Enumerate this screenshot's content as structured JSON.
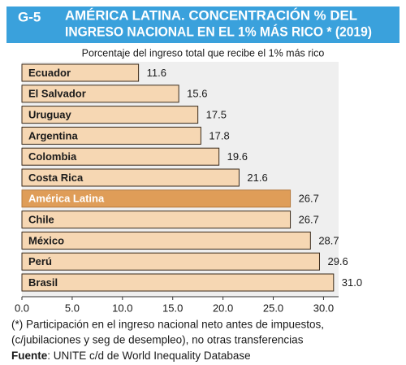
{
  "chart_data": {
    "type": "barh",
    "chart_number": "G-5",
    "title": [
      "AMÉRICA LATINA. CONCENTRACIÓN % DEL",
      "INGRESO NACIONAL EN EL 1% MÁS RICO * (2019)"
    ],
    "subtitle": "Porcentaje del ingreso total que recibe el 1% más rico",
    "categories": [
      "Ecuador",
      "El Salvador",
      "Uruguay",
      "Argentina",
      "Colombia",
      "Costa Rica",
      "América Latina",
      "Chile",
      "México",
      "Perú",
      "Brasil"
    ],
    "values": [
      11.6,
      15.6,
      17.5,
      17.8,
      19.6,
      21.6,
      26.7,
      26.7,
      28.7,
      29.6,
      31.0
    ],
    "value_labels": [
      "11.6",
      "15.6",
      "17.5",
      "17.8",
      "19.6",
      "21.6",
      "26.7",
      "26.7",
      "28.7",
      "29.6",
      "31.0"
    ],
    "colors": [
      "#f6d7b3",
      "#f6d7b3",
      "#f6d7b3",
      "#f6d7b3",
      "#f6d7b3",
      "#f6d7b3",
      "#df9d58",
      "#f6d7b3",
      "#f6d7b3",
      "#f6d7b3",
      "#f6d7b3"
    ],
    "xlim": [
      0,
      31.5
    ],
    "xticks": [
      {
        "value": 0,
        "label": "0.0"
      },
      {
        "value": 5,
        "label": "5.0"
      },
      {
        "value": 10,
        "label": "10.0"
      },
      {
        "value": 15,
        "label": "15.0"
      },
      {
        "value": 20,
        "label": "20.0"
      },
      {
        "value": 25,
        "label": "25.0"
      },
      {
        "value": 30,
        "label": "30.0"
      }
    ],
    "notes": [
      "(*) Participación en el ingreso nacional neto antes de impuestos,",
      "(c/jubilaciones y seg de desempleo), no otras transferencias"
    ],
    "source_label": "Fuente",
    "source": ": UNITE c/d de World Inequality Database"
  }
}
